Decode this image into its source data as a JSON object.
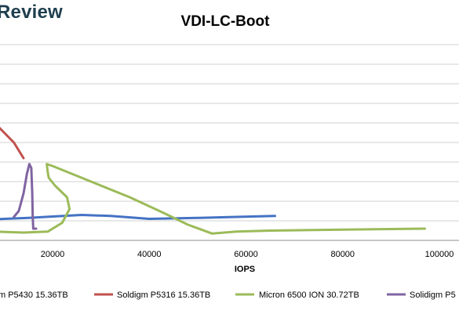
{
  "brand": {
    "text": "Review"
  },
  "chart_data": {
    "type": "line",
    "title": "VDI-LC-Boot",
    "xlabel": "IOPS",
    "ylabel": "",
    "xlim": [
      -10000,
      105000
    ],
    "ylim": [
      0,
      12
    ],
    "x_ticks": [
      20000,
      40000,
      60000,
      80000,
      100000
    ],
    "x_tick_labels": [
      "20000",
      "40000",
      "60000",
      "80000",
      "100000"
    ],
    "y_gridlines": [
      1,
      2,
      3,
      4,
      5,
      6,
      7,
      8,
      9,
      10,
      11
    ],
    "grid": true,
    "legend_position": "bottom",
    "series": [
      {
        "name": "m P5430 15.36TB",
        "color": "#4472c4",
        "points": [
          [
            0,
            1.0
          ],
          [
            5000,
            1.05
          ],
          [
            10000,
            1.1
          ],
          [
            15000,
            1.15
          ],
          [
            20000,
            1.22
          ],
          [
            26000,
            1.3
          ],
          [
            32000,
            1.25
          ],
          [
            40000,
            1.1
          ],
          [
            50000,
            1.15
          ],
          [
            58000,
            1.2
          ],
          [
            66000,
            1.25
          ]
        ]
      },
      {
        "name": "Soldigm P5316 15.36TB",
        "color": "#c0504d",
        "points": [
          [
            -2000,
            8.8
          ],
          [
            0,
            8.4
          ],
          [
            2000,
            7.8
          ],
          [
            4000,
            7.2
          ],
          [
            6000,
            6.6
          ],
          [
            8000,
            6.0
          ],
          [
            10000,
            5.5
          ],
          [
            12000,
            5.0
          ],
          [
            14000,
            4.2
          ]
        ]
      },
      {
        "name": "Micron 6500 ION 30.72TB",
        "color": "#9bbb59",
        "points": [
          [
            2000,
            0.6
          ],
          [
            8000,
            0.45
          ],
          [
            14000,
            0.4
          ],
          [
            19000,
            0.45
          ],
          [
            22000,
            0.9
          ],
          [
            23500,
            1.6
          ],
          [
            23000,
            2.2
          ],
          [
            20500,
            2.8
          ],
          [
            19200,
            3.2
          ],
          [
            19000,
            3.5
          ],
          [
            18800,
            3.9
          ],
          [
            20000,
            3.8
          ],
          [
            28000,
            3.0
          ],
          [
            36000,
            2.2
          ],
          [
            43000,
            1.4
          ],
          [
            48000,
            0.8
          ],
          [
            53000,
            0.35
          ],
          [
            58000,
            0.45
          ],
          [
            65000,
            0.5
          ],
          [
            80000,
            0.55
          ],
          [
            97000,
            0.6
          ]
        ]
      },
      {
        "name": "Solidigm P5",
        "color": "#8064a2",
        "points": [
          [
            12000,
            1.2
          ],
          [
            13000,
            1.5
          ],
          [
            14000,
            2.4
          ],
          [
            14700,
            3.4
          ],
          [
            15200,
            3.9
          ],
          [
            15600,
            3.7
          ],
          [
            15800,
            2.4
          ],
          [
            15900,
            1.2
          ],
          [
            16000,
            0.6
          ],
          [
            16600,
            0.6
          ]
        ]
      }
    ]
  }
}
